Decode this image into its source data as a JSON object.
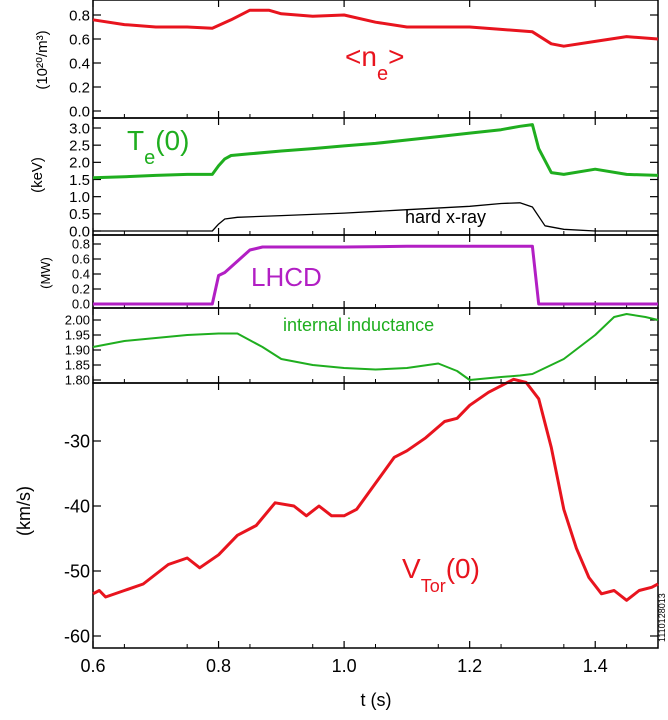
{
  "colors": {
    "red": "#e8141e",
    "green": "#1fae1f",
    "purple": "#b21fc4",
    "black": "#000000"
  },
  "figure_id": "1110128013",
  "chart_data": [
    {
      "type": "line",
      "ylabel": "(10²⁰/m³)",
      "ylim": [
        0.0,
        0.9
      ],
      "yticks": [
        "0.8",
        "0.6",
        "0.4",
        "0.2",
        "0.0"
      ],
      "label": "<n",
      "label_sub": "e",
      "label_suffix": ">",
      "series": [
        {
          "color": "#e8141e",
          "x": [
            0.6,
            0.65,
            0.7,
            0.75,
            0.79,
            0.82,
            0.85,
            0.88,
            0.9,
            0.95,
            1.0,
            1.05,
            1.1,
            1.15,
            1.2,
            1.25,
            1.3,
            1.33,
            1.35,
            1.4,
            1.45,
            1.5
          ],
          "y": [
            0.76,
            0.72,
            0.7,
            0.7,
            0.69,
            0.76,
            0.84,
            0.84,
            0.81,
            0.79,
            0.8,
            0.74,
            0.7,
            0.7,
            0.7,
            0.68,
            0.66,
            0.56,
            0.54,
            0.58,
            0.62,
            0.6
          ]
        }
      ]
    },
    {
      "type": "line",
      "ylabel": "(keV)",
      "ylim": [
        0.0,
        3.3
      ],
      "yticks": [
        "3.0",
        "2.5",
        "2.0",
        "1.5",
        "1.0",
        "0.5",
        "0.0"
      ],
      "label": "T",
      "label_sub": "e",
      "label_suffix": "(0)",
      "annotation": "hard x-ray",
      "series": [
        {
          "color": "#1fae1f",
          "x": [
            0.6,
            0.65,
            0.7,
            0.75,
            0.79,
            0.8,
            0.81,
            0.82,
            0.85,
            0.9,
            0.95,
            1.0,
            1.05,
            1.1,
            1.15,
            1.2,
            1.25,
            1.28,
            1.3,
            1.31,
            1.33,
            1.35,
            1.4,
            1.45,
            1.5
          ],
          "y": [
            1.55,
            1.58,
            1.62,
            1.65,
            1.65,
            1.9,
            2.1,
            2.2,
            2.25,
            2.33,
            2.4,
            2.48,
            2.55,
            2.65,
            2.75,
            2.85,
            2.95,
            3.05,
            3.1,
            2.4,
            1.7,
            1.65,
            1.8,
            1.65,
            1.62
          ]
        },
        {
          "color": "#000000",
          "x": [
            0.6,
            0.79,
            0.8,
            0.81,
            0.83,
            0.9,
            1.0,
            1.1,
            1.2,
            1.25,
            1.28,
            1.3,
            1.32,
            1.35,
            1.4,
            1.5
          ],
          "y": [
            0.0,
            0.0,
            0.2,
            0.35,
            0.4,
            0.45,
            0.52,
            0.62,
            0.72,
            0.8,
            0.82,
            0.7,
            0.15,
            0.05,
            0.0,
            0.0
          ]
        }
      ]
    },
    {
      "type": "line",
      "ylabel": "(MW)",
      "ylim": [
        0.0,
        0.85
      ],
      "yticks": [
        "0.8",
        "0.6",
        "0.4",
        "0.2",
        "0.0"
      ],
      "label": "LHCD",
      "series": [
        {
          "color": "#b21fc4",
          "x": [
            0.6,
            0.79,
            0.8,
            0.81,
            0.85,
            0.87,
            1.0,
            1.1,
            1.2,
            1.29,
            1.3,
            1.31,
            1.5
          ],
          "y": [
            0.0,
            0.0,
            0.38,
            0.42,
            0.72,
            0.76,
            0.76,
            0.77,
            0.77,
            0.77,
            0.77,
            0.0,
            0.0
          ]
        }
      ]
    },
    {
      "type": "line",
      "ylim": [
        1.78,
        2.04
      ],
      "yticks": [
        "2.00",
        "1.95",
        "1.90",
        "1.85",
        "1.80"
      ],
      "label": "internal inductance",
      "series": [
        {
          "color": "#1fae1f",
          "x": [
            0.6,
            0.65,
            0.7,
            0.75,
            0.8,
            0.83,
            0.87,
            0.9,
            0.95,
            1.0,
            1.05,
            1.1,
            1.15,
            1.18,
            1.2,
            1.25,
            1.28,
            1.3,
            1.35,
            1.4,
            1.43,
            1.45,
            1.48,
            1.5
          ],
          "y": [
            1.91,
            1.93,
            1.94,
            1.95,
            1.955,
            1.955,
            1.91,
            1.87,
            1.85,
            1.84,
            1.835,
            1.84,
            1.855,
            1.83,
            1.8,
            1.81,
            1.815,
            1.82,
            1.87,
            1.95,
            2.01,
            2.02,
            2.01,
            2.0
          ]
        }
      ]
    },
    {
      "type": "line",
      "ylabel": "(km/s)",
      "xlabel": "t (s)",
      "xlim": [
        0.6,
        1.5
      ],
      "ylim": [
        -61,
        -19
      ],
      "yticks": [
        "-30",
        "-40",
        "-50",
        "-60"
      ],
      "xticks": [
        "0.6",
        "0.8",
        "1.0",
        "1.2",
        "1.4"
      ],
      "label": "V",
      "label_sub": "Tor",
      "label_suffix": "(0)",
      "series": [
        {
          "color": "#e8141e",
          "x": [
            0.6,
            0.61,
            0.62,
            0.65,
            0.68,
            0.72,
            0.75,
            0.77,
            0.8,
            0.83,
            0.86,
            0.89,
            0.92,
            0.94,
            0.96,
            0.98,
            1.0,
            1.02,
            1.05,
            1.08,
            1.1,
            1.13,
            1.16,
            1.18,
            1.2,
            1.23,
            1.25,
            1.27,
            1.29,
            1.31,
            1.33,
            1.35,
            1.37,
            1.39,
            1.41,
            1.43,
            1.45,
            1.47,
            1.49,
            1.5
          ],
          "y": [
            -53.5,
            -53.0,
            -54.0,
            -53.0,
            -52.0,
            -49.0,
            -48.0,
            -49.5,
            -47.5,
            -44.5,
            -43.0,
            -39.5,
            -40.0,
            -41.5,
            -40.0,
            -41.5,
            -41.5,
            -40.5,
            -36.5,
            -32.5,
            -31.5,
            -29.5,
            -27.0,
            -26.5,
            -24.5,
            -22.5,
            -21.5,
            -20.5,
            -21.0,
            -23.5,
            -31.0,
            -40.5,
            -46.5,
            -51.0,
            -53.5,
            -53.0,
            -54.5,
            -53.0,
            -52.5,
            -52.0
          ]
        }
      ]
    }
  ]
}
